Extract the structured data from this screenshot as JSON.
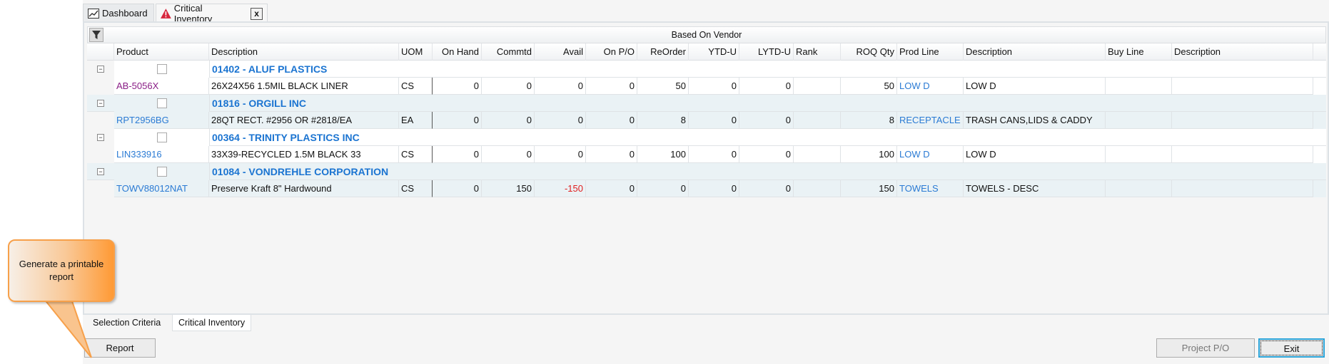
{
  "tabs": [
    {
      "label": "Dashboard",
      "icon": "chart-icon"
    },
    {
      "label": "Critical Inventory",
      "icon": "warning-icon"
    }
  ],
  "grid": {
    "group_header": "Based On Vendor",
    "columns": [
      "",
      "Product",
      "Description",
      "UOM",
      "On Hand",
      "Commtd",
      "Avail",
      "On P/O",
      "ReOrder",
      "YTD-U",
      "LYTD-U",
      "Rank",
      "ROQ Qty",
      "Prod Line",
      "Description",
      "Buy Line",
      "Description"
    ],
    "groups": [
      {
        "vendor": "01402 - ALUF PLASTICS",
        "items": [
          {
            "product": "AB-5056X",
            "description": "26X24X56 1.5MIL BLACK LINER",
            "uom": "CS",
            "on_hand": "0",
            "commtd": "0",
            "avail": "0",
            "on_po": "0",
            "reorder": "50",
            "ytd_u": "0",
            "lytd_u": "0",
            "rank": "",
            "roq_qty": "50",
            "prod_line": "LOW D",
            "prod_line_desc": "LOW D",
            "buy_line": "",
            "buy_line_desc": ""
          }
        ]
      },
      {
        "vendor": "01816 - ORGILL INC",
        "items": [
          {
            "product": "RPT2956BG",
            "description": "28QT RECT. #2956 OR #2818/EA",
            "uom": "EA",
            "on_hand": "0",
            "commtd": "0",
            "avail": "0",
            "on_po": "0",
            "reorder": "8",
            "ytd_u": "0",
            "lytd_u": "0",
            "rank": "",
            "roq_qty": "8",
            "prod_line": "RECEPTACLE",
            "prod_line_desc": "TRASH CANS,LIDS & CADDY",
            "buy_line": "",
            "buy_line_desc": ""
          }
        ]
      },
      {
        "vendor": "00364 - TRINITY PLASTICS INC",
        "items": [
          {
            "product": "LIN333916",
            "description": "33X39-RECYCLED 1.5M BLACK 33",
            "uom": "CS",
            "on_hand": "0",
            "commtd": "0",
            "avail": "0",
            "on_po": "0",
            "reorder": "100",
            "ytd_u": "0",
            "lytd_u": "0",
            "rank": "",
            "roq_qty": "100",
            "prod_line": "LOW D",
            "prod_line_desc": "LOW D",
            "buy_line": "",
            "buy_line_desc": ""
          }
        ]
      },
      {
        "vendor": "01084 - VONDREHLE CORPORATION",
        "items": [
          {
            "product": "TOWV88012NAT",
            "description": "Preserve Kraft 8\" Hardwound",
            "uom": "CS",
            "on_hand": "0",
            "commtd": "150",
            "avail": "-150",
            "on_po": "0",
            "reorder": "0",
            "ytd_u": "0",
            "lytd_u": "0",
            "rank": "",
            "roq_qty": "150",
            "prod_line": "TOWELS",
            "prod_line_desc": "TOWELS - DESC",
            "buy_line": "",
            "buy_line_desc": ""
          }
        ]
      }
    ]
  },
  "bottom_tabs": [
    "Selection Criteria",
    "Critical Inventory"
  ],
  "buttons": {
    "report": "Report",
    "project_po": "Project P/O",
    "exit": "Exit"
  },
  "callout": "Generate a printable report",
  "colors": {
    "vendor": "#1b74d1",
    "link": "#2b7bd4",
    "visited_link": "#8a1e86",
    "negative": "#e02020",
    "callout": "#ff9a35",
    "row_alt": "#eaf2f5"
  }
}
